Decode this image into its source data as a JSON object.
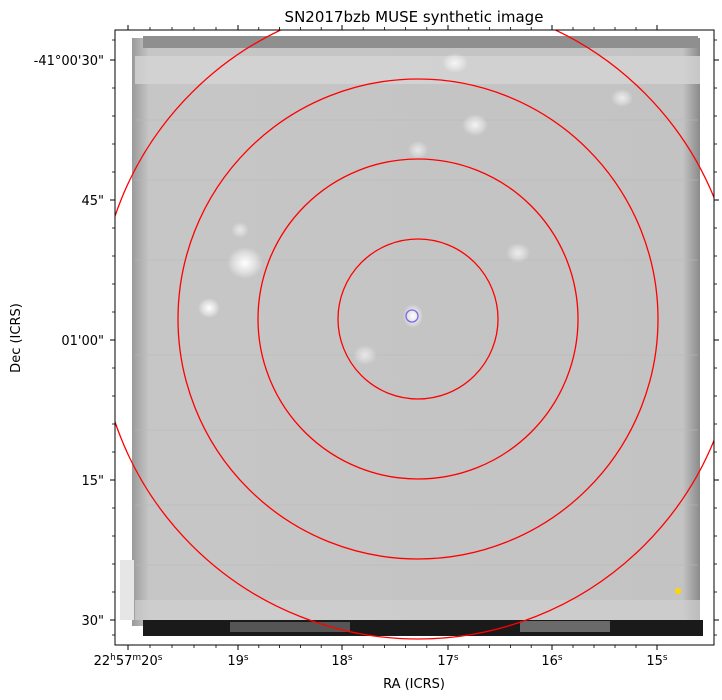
{
  "title": "SN2017bzb MUSE synthetic image",
  "x_axis": {
    "label": "RA (ICRS)",
    "ticks": [
      {
        "h": "22",
        "m": "57",
        "s": "20",
        "first": true
      },
      {
        "s": "19"
      },
      {
        "s": "18"
      },
      {
        "s": "17"
      },
      {
        "s": "16"
      },
      {
        "s": "15"
      }
    ]
  },
  "y_axis": {
    "label": "Dec (ICRS)",
    "ticks": [
      "-41°00'30\"",
      "45\"",
      "01'00\"",
      "15\"",
      "30\""
    ]
  },
  "overlays": {
    "circle_color": "#ff0000",
    "marker_color": "#7b68ee",
    "dot_color": "#ffd700",
    "ring_count": 4
  }
}
